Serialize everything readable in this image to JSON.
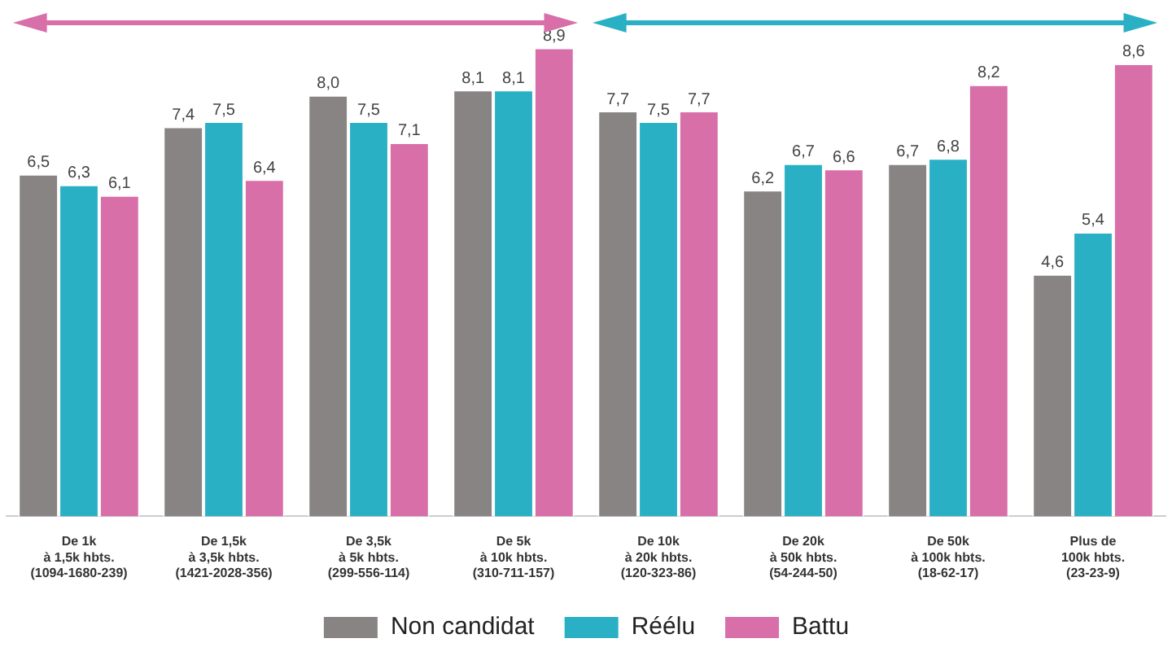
{
  "chart_data": {
    "type": "bar",
    "categories": [
      "De 1k\nà 1,5k hbts.\n(1094-1680-239)",
      "De 1,5k\nà 3,5k hbts.\n(1421-2028-356)",
      "De 3,5k\nà 5k hbts.\n(299-556-114)",
      "De 5k\nà 10k hbts.\n(310-711-157)",
      "De 10k\nà 20k hbts.\n(120-323-86)",
      "De 20k\nà 50k hbts.\n(54-244-50)",
      "De 50k\nà 100k hbts.\n(18-62-17)",
      "Plus de\n100k hbts.\n(23-23-9)"
    ],
    "series": [
      {
        "name": "Non candidat",
        "color": "#878483",
        "values": [
          6.5,
          7.4,
          8.0,
          8.1,
          7.7,
          6.2,
          6.7,
          4.6
        ],
        "value_labels": [
          "6,5",
          "7,4",
          "8,0",
          "8,1",
          "7,7",
          "6,2",
          "6,7",
          "4,6"
        ]
      },
      {
        "name": "Réélu",
        "color": "#2ab0c5",
        "values": [
          6.3,
          7.5,
          7.5,
          8.1,
          7.5,
          6.7,
          6.8,
          5.4
        ],
        "value_labels": [
          "6,3",
          "7,5",
          "7,5",
          "8,1",
          "7,5",
          "6,7",
          "6,8",
          "5,4"
        ]
      },
      {
        "name": "Battu",
        "color": "#d86fa9",
        "values": [
          6.1,
          6.4,
          7.1,
          8.9,
          7.7,
          6.6,
          8.2,
          8.6
        ],
        "value_labels": [
          "6,1",
          "6,4",
          "7,1",
          "8,9",
          "7,7",
          "6,6",
          "8,2",
          "8,6"
        ]
      }
    ],
    "legend": "bottom",
    "grid": false,
    "tick_labels": "x"
  }
}
